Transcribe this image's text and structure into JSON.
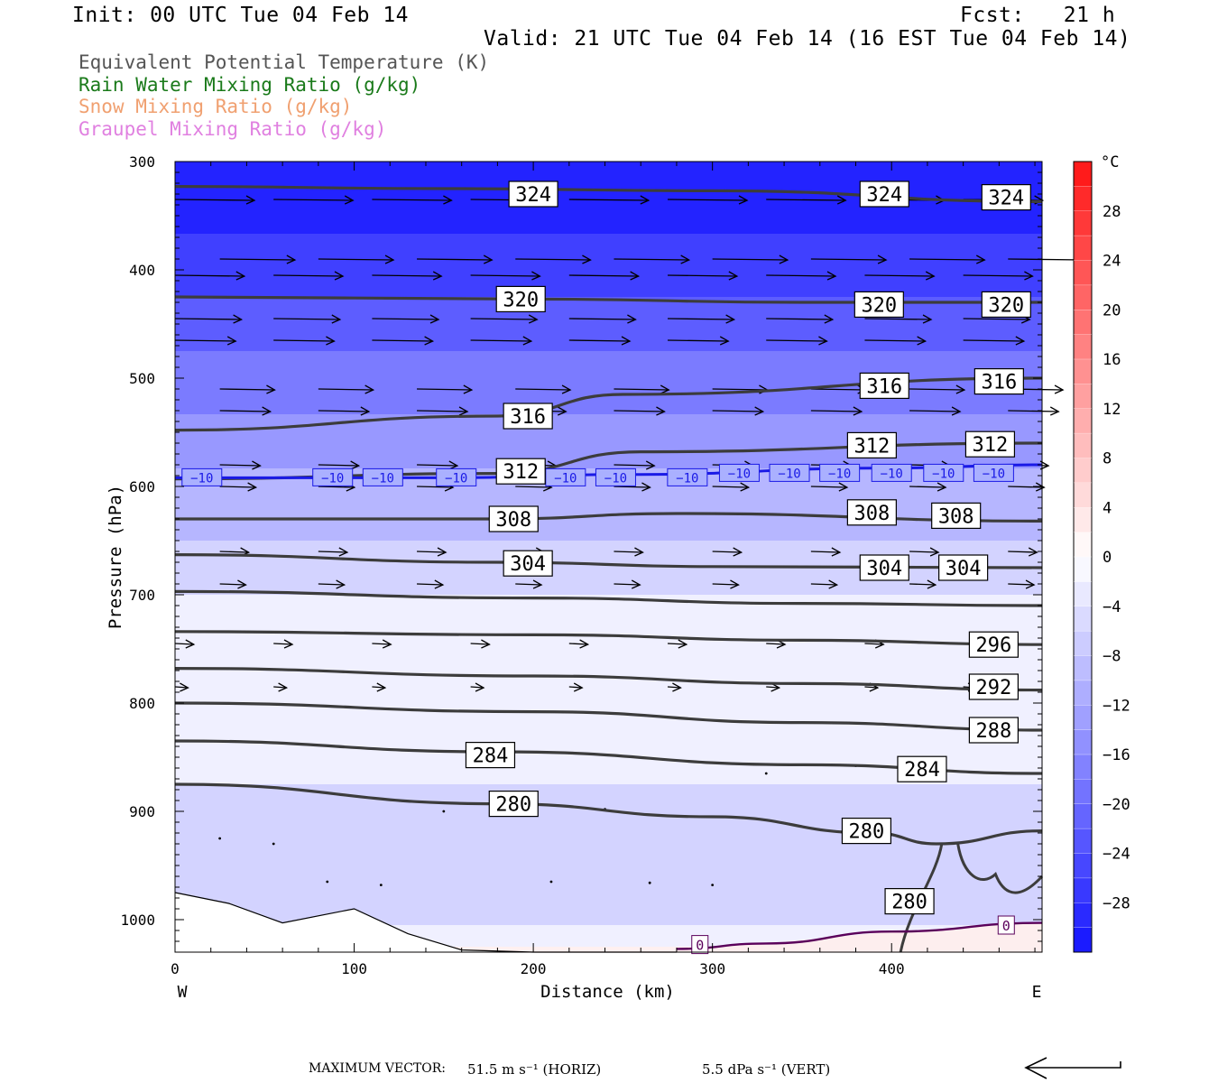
{
  "header": {
    "init": "Init: 00 UTC Tue 04 Feb 14",
    "fcst": "Fcst:   21 h",
    "valid": "Valid: 21 UTC Tue 04 Feb 14 (16 EST Tue 04 Feb 14)"
  },
  "legend": [
    {
      "label": "Equivalent Potential Temperature (K)",
      "color": "#555555"
    },
    {
      "label": "Rain Water Mixing Ratio (g/kg)",
      "color": "#1a7a1a"
    },
    {
      "label": "Snow Mixing Ratio (g/kg)",
      "color": "#f0a070"
    },
    {
      "label": "Graupel Mixing Ratio (g/kg)",
      "color": "#e080e0"
    }
  ],
  "footer": {
    "max_vector_label": "MAXIMUM VECTOR:",
    "horiz": "51.5 m s⁻¹ (HORIZ)",
    "vert": "5.5 dPa s⁻¹ (VERT)"
  },
  "chart_data": {
    "type": "cross-section",
    "xlabel": "Distance (km)",
    "ylabel": "Pressure (hPa)",
    "x_ticks": [
      0,
      100,
      200,
      300,
      400
    ],
    "y_ticks": [
      300,
      400,
      500,
      600,
      700,
      800,
      900,
      1000
    ],
    "xlim": [
      0,
      484
    ],
    "ylim": [
      300,
      1030
    ],
    "y_axis": "pressure, decreasing upward",
    "left_end": "W",
    "right_end": "E",
    "colorbar": {
      "unit": "°C",
      "tick_labels": [
        "28",
        "24",
        "20",
        "16",
        "12",
        "8",
        "4",
        "0",
        "−4",
        "−8",
        "−12",
        "−16",
        "−20",
        "−24",
        "−28"
      ],
      "range": [
        -32,
        32
      ],
      "step": 2
    },
    "shading_temperature": {
      "pressures": [
        300,
        350,
        400,
        450,
        500,
        550,
        600,
        650,
        700,
        750,
        800,
        850,
        900,
        950,
        1000,
        1030
      ],
      "values_c": [
        -31,
        -29,
        -26,
        -22,
        -18,
        -15,
        -11,
        -8,
        -4,
        -1,
        -2,
        -3,
        -5,
        -6,
        -5,
        1
      ]
    },
    "theta_e_contours": [
      {
        "value": 324,
        "points": [
          [
            0,
            323
          ],
          [
            150,
            325
          ],
          [
            300,
            327
          ],
          [
            484,
            337
          ]
        ],
        "labels": [
          [
            200,
            330
          ],
          [
            396,
            330
          ],
          [
            464,
            333
          ]
        ]
      },
      {
        "value": 320,
        "points": [
          [
            0,
            425
          ],
          [
            200,
            427
          ],
          [
            350,
            430
          ],
          [
            484,
            430
          ]
        ],
        "labels": [
          [
            193,
            427
          ],
          [
            393,
            432
          ],
          [
            464,
            432
          ]
        ]
      },
      {
        "value": 316,
        "points": [
          [
            0,
            548
          ],
          [
            180,
            535
          ],
          [
            250,
            515
          ],
          [
            484,
            500
          ]
        ],
        "labels": [
          [
            197,
            535
          ],
          [
            396,
            507
          ],
          [
            460,
            503
          ]
        ]
      },
      {
        "value": 312,
        "points": [
          [
            0,
            593
          ],
          [
            180,
            588
          ],
          [
            260,
            568
          ],
          [
            484,
            560
          ]
        ],
        "labels": [
          [
            193,
            586
          ],
          [
            389,
            562
          ],
          [
            455,
            561
          ]
        ]
      },
      {
        "value": 308,
        "points": [
          [
            0,
            630
          ],
          [
            180,
            630
          ],
          [
            280,
            625
          ],
          [
            484,
            632
          ]
        ],
        "labels": [
          [
            189,
            630
          ],
          [
            389,
            624
          ],
          [
            436,
            627
          ]
        ]
      },
      {
        "value": 304,
        "points": [
          [
            0,
            663
          ],
          [
            180,
            670
          ],
          [
            300,
            674
          ],
          [
            484,
            675
          ]
        ],
        "labels": [
          [
            197,
            671
          ],
          [
            396,
            675
          ],
          [
            440,
            675
          ]
        ]
      },
      {
        "value": 300,
        "points": [
          [
            0,
            697
          ],
          [
            200,
            703
          ],
          [
            350,
            708
          ],
          [
            484,
            710
          ]
        ],
        "labels": []
      },
      {
        "value": 296,
        "points": [
          [
            0,
            734
          ],
          [
            200,
            737
          ],
          [
            350,
            742
          ],
          [
            484,
            746
          ]
        ],
        "labels": [
          [
            457,
            746
          ]
        ]
      },
      {
        "value": 292,
        "points": [
          [
            0,
            768
          ],
          [
            200,
            775
          ],
          [
            350,
            782
          ],
          [
            484,
            788
          ]
        ],
        "labels": [
          [
            457,
            785
          ]
        ]
      },
      {
        "value": 288,
        "points": [
          [
            0,
            800
          ],
          [
            200,
            808
          ],
          [
            350,
            818
          ],
          [
            484,
            825
          ]
        ],
        "labels": [
          [
            457,
            825
          ]
        ]
      },
      {
        "value": 284,
        "points": [
          [
            0,
            835
          ],
          [
            180,
            845
          ],
          [
            350,
            857
          ],
          [
            484,
            865
          ]
        ],
        "labels": [
          [
            176,
            848
          ],
          [
            417,
            861
          ]
        ]
      },
      {
        "value": 280,
        "points": [
          [
            0,
            875
          ],
          [
            180,
            893
          ],
          [
            300,
            905
          ],
          [
            390,
            920
          ],
          [
            425,
            930
          ],
          [
            484,
            918
          ]
        ],
        "labels": [
          [
            189,
            893
          ],
          [
            386,
            918
          ],
          [
            410,
            983
          ]
        ]
      }
    ],
    "isotherm_contours": [
      {
        "value": -10,
        "color": "#1a1ae6",
        "points": [
          [
            0,
            592
          ],
          [
            150,
            592
          ],
          [
            250,
            589
          ],
          [
            400,
            583
          ],
          [
            484,
            580
          ]
        ]
      },
      {
        "value": 0,
        "color": "#5a005a",
        "points": [
          [
            280,
            1027
          ],
          [
            330,
            1022
          ],
          [
            400,
            1011
          ],
          [
            484,
            1003
          ]
        ]
      }
    ],
    "terrain_surface_hpa": [
      [
        0,
        975
      ],
      [
        30,
        985
      ],
      [
        60,
        1003
      ],
      [
        100,
        990
      ],
      [
        130,
        1013
      ],
      [
        160,
        1028
      ],
      [
        200,
        1030
      ],
      [
        280,
        1030
      ]
    ]
  }
}
